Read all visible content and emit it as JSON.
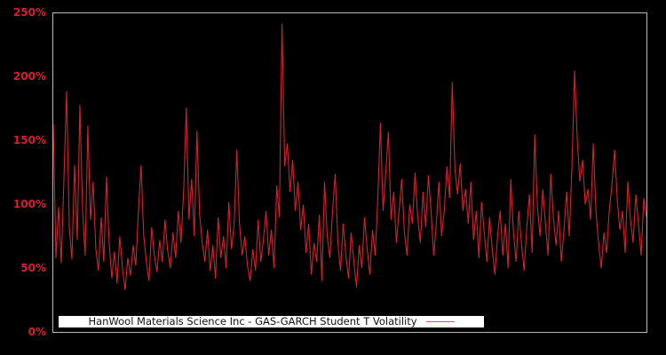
{
  "figure": {
    "background": "#000000",
    "accent_red": "#d62031",
    "spine_color": "#b9b9b9",
    "legend_background": "#ffffff"
  },
  "legend": {
    "label": "HanWool Materials Science Inc - GAS-GARCH Student T Volatility"
  },
  "y_axis": {
    "ticks": [
      "0%",
      "50%",
      "100%",
      "150%",
      "200%",
      "250%"
    ]
  },
  "chart_data": {
    "type": "line",
    "title": "",
    "xlabel": "",
    "ylabel": "",
    "ylim": [
      0,
      250
    ],
    "y_unit": "percent",
    "yticks": [
      0,
      50,
      100,
      150,
      200,
      250
    ],
    "x_axis_labels_visible": false,
    "grid": false,
    "background": "black",
    "legend_position": "lower-left-inside",
    "series": [
      {
        "name": "HanWool Materials Science Inc - GAS-GARCH Student T Volatility",
        "color": "#d62031",
        "values": [
          163,
          58,
          98,
          54,
          120,
          189,
          82,
          57,
          131,
          72,
          178,
          95,
          60,
          162,
          88,
          118,
          65,
          48,
          90,
          55,
          122,
          70,
          42,
          63,
          38,
          75,
          50,
          33,
          58,
          44,
          68,
          52,
          95,
          131,
          76,
          55,
          40,
          82,
          60,
          47,
          72,
          55,
          88,
          64,
          50,
          78,
          58,
          95,
          70,
          110,
          176,
          88,
          120,
          75,
          158,
          92,
          70,
          55,
          80,
          48,
          68,
          42,
          90,
          58,
          75,
          50,
          102,
          65,
          85,
          143,
          85,
          60,
          75,
          52,
          40,
          65,
          48,
          88,
          55,
          72,
          95,
          60,
          80,
          50,
          115,
          90,
          242,
          130,
          148,
          110,
          135,
          95,
          118,
          80,
          100,
          62,
          85,
          45,
          70,
          55,
          92,
          40,
          118,
          75,
          58,
          95,
          124,
          70,
          48,
          85,
          60,
          42,
          78,
          55,
          35,
          68,
          50,
          90,
          65,
          45,
          80,
          60,
          105,
          164,
          95,
          125,
          157,
          88,
          110,
          70,
          95,
          120,
          78,
          60,
          100,
          85,
          125,
          90,
          70,
          110,
          82,
          123,
          95,
          60,
          85,
          118,
          75,
          95,
          130,
          105,
          196,
          128,
          108,
          132,
          95,
          112,
          85,
          118,
          72,
          95,
          58,
          102,
          78,
          55,
          90,
          65,
          45,
          75,
          95,
          60,
          85,
          50,
          120,
          78,
          55,
          95,
          70,
          48,
          82,
          108,
          62,
          155,
          98,
          75,
          112,
          85,
          60,
          124,
          90,
          68,
          95,
          55,
          80,
          110,
          75,
          130,
          205,
          150,
          118,
          135,
          100,
          112,
          88,
          148,
          95,
          70,
          50,
          78,
          62,
          95,
          115,
          143,
          105,
          80,
          95,
          62,
          118,
          88,
          70,
          108,
          85,
          60,
          105,
          90
        ]
      }
    ]
  }
}
